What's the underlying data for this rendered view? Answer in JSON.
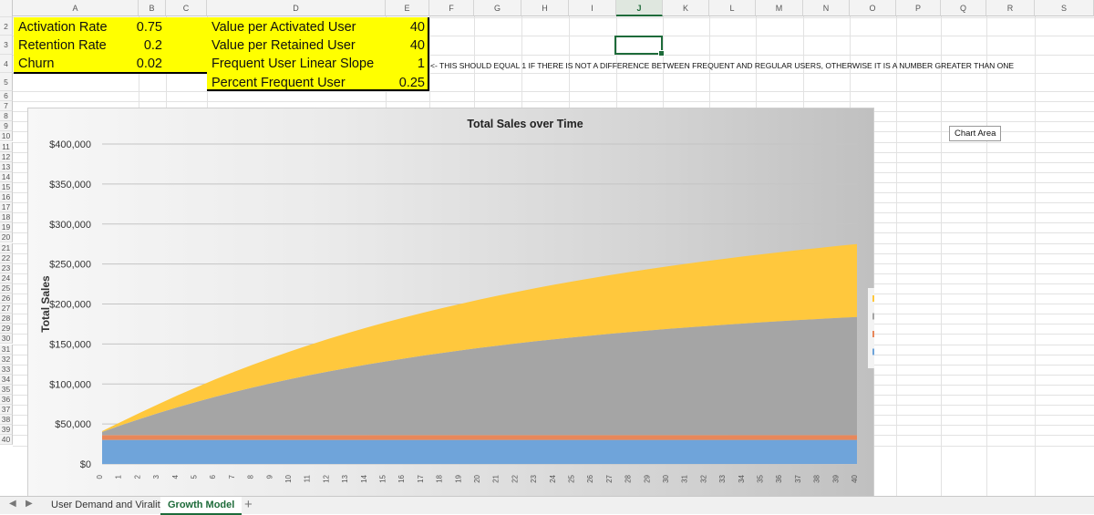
{
  "columns": [
    "A",
    "B",
    "C",
    "D",
    "E",
    "F",
    "G",
    "H",
    "I",
    "J",
    "K",
    "L",
    "M",
    "N",
    "O",
    "P",
    "Q",
    "R",
    "S"
  ],
  "active_column": "J",
  "rows": [
    "1",
    "2",
    "3",
    "4",
    "5",
    "6",
    "7",
    "8",
    "9",
    "10",
    "11",
    "12",
    "13",
    "14",
    "15",
    "16",
    "17",
    "18",
    "19",
    "20",
    "21",
    "22",
    "23",
    "24",
    "25",
    "26",
    "27",
    "28",
    "29",
    "30",
    "31",
    "32",
    "33",
    "34",
    "35",
    "36",
    "37",
    "38",
    "39",
    "40"
  ],
  "params": {
    "activation_rate_label": "Activation Rate",
    "activation_rate_value": "0.75",
    "retention_rate_label": "Retention Rate",
    "retention_rate_value": "0.2",
    "churn_label": "Churn",
    "churn_value": "0.02",
    "value_per_activated_label": "Value per Activated User",
    "value_per_activated_value": "40",
    "value_per_retained_label": "Value per Retained User",
    "value_per_retained_value": "40",
    "frequent_slope_label": "Frequent User Linear Slope",
    "frequent_slope_value": "1",
    "percent_frequent_label": "Percent Frequent User",
    "percent_frequent_value": "0.25"
  },
  "note": "<- THIS SHOULD EQUAL 1 IF THERE IS NOT A DIFFERENCE BETWEEN FREQUENT AND REGULAR USERS, OTHERWISE IT IS A NUMBER GREATER THAN ONE",
  "chart_area_tooltip": "Chart Area",
  "colors": {
    "param_fill": "#ffff00",
    "frequent_retained": "#ffc83d",
    "regular_retained": "#a5a5a5",
    "activated": "#e8875a",
    "acquired": "#6fa4da",
    "selection": "#1e6b3a"
  },
  "chart_data": {
    "type": "area",
    "stacked": true,
    "title": "Total Sales over Time",
    "ylabel": "Total Sales",
    "xlabel": "",
    "ylim": [
      0,
      400000
    ],
    "yticks": [
      "$0",
      "$50,000",
      "$100,000",
      "$150,000",
      "$200,000",
      "$250,000",
      "$300,000",
      "$350,000",
      "$400,000"
    ],
    "x": [
      0,
      1,
      2,
      3,
      4,
      5,
      6,
      7,
      8,
      9,
      10,
      11,
      12,
      13,
      14,
      15,
      16,
      17,
      18,
      19,
      20,
      21,
      22,
      23,
      24,
      25,
      26,
      27,
      28,
      29,
      30,
      31,
      32,
      33,
      34,
      35,
      36,
      37,
      38,
      39,
      40
    ],
    "legend_position": "right",
    "grid": true,
    "series": [
      {
        "name": "Total Value for Acquired Users",
        "color": "#6fa4da",
        "values": [
          30000,
          30000,
          30000,
          30000,
          30000,
          30000,
          30000,
          30000,
          30000,
          30000,
          30000,
          30000,
          30000,
          30000,
          30000,
          30000,
          30000,
          30000,
          30000,
          30000,
          30000,
          30000,
          30000,
          30000,
          30000,
          30000,
          30000,
          30000,
          30000,
          30000,
          30000,
          30000,
          30000,
          30000,
          30000,
          30000,
          30000,
          30000,
          30000,
          30000,
          30000
        ]
      },
      {
        "name": "Total Value for Activated Users",
        "color": "#e8875a",
        "values": [
          6000,
          6000,
          6000,
          6000,
          6000,
          6000,
          6000,
          6000,
          6000,
          6000,
          6000,
          6000,
          6000,
          6000,
          6000,
          6000,
          6000,
          6000,
          6000,
          6000,
          6000,
          6000,
          6000,
          6000,
          6000,
          6000,
          6000,
          6000,
          6000,
          6000,
          6000,
          6000,
          6000,
          6000,
          6000,
          6000,
          6000,
          6000,
          6000,
          6000,
          6000
        ]
      },
      {
        "name": "Total Value for Regular Retained",
        "color": "#a5a5a5",
        "values": [
          4000,
          12400,
          20300,
          27800,
          34900,
          41600,
          48000,
          54000,
          59700,
          65100,
          70200,
          75100,
          79700,
          84000,
          88200,
          92100,
          95800,
          99400,
          102800,
          106000,
          109100,
          112000,
          114800,
          117500,
          120000,
          122400,
          124700,
          126900,
          129000,
          131000,
          132900,
          134700,
          136400,
          138100,
          139700,
          141200,
          142600,
          144000,
          145300,
          146600,
          147800
        ]
      },
      {
        "name": "Total Value for Frequent Retained",
        "color": "#ffc83d",
        "values": [
          1000,
          4200,
          7700,
          11200,
          14800,
          18300,
          21800,
          25200,
          28500,
          31700,
          34800,
          37800,
          40700,
          43500,
          46200,
          48800,
          51300,
          53700,
          56000,
          58200,
          60400,
          62500,
          64500,
          66400,
          68300,
          70100,
          71800,
          73500,
          75100,
          76700,
          78200,
          79700,
          81100,
          82500,
          83800,
          85100,
          86400,
          87600,
          88800,
          90000,
          91200
        ]
      }
    ]
  }
}
